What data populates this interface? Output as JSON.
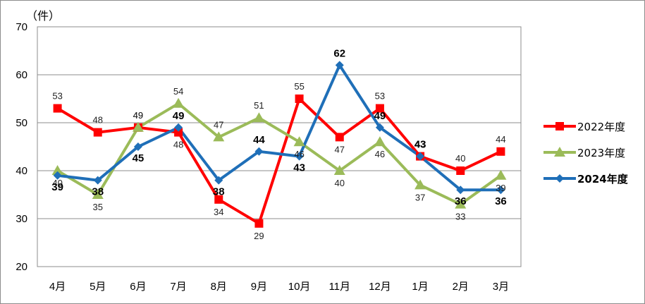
{
  "chart_data": {
    "type": "line",
    "unit_label": "（件）",
    "categories": [
      "4月",
      "5月",
      "6月",
      "7月",
      "8月",
      "9月",
      "10月",
      "11月",
      "12月",
      "1月",
      "2月",
      "3月"
    ],
    "ylim": [
      20,
      70
    ],
    "yticks": [
      20,
      30,
      40,
      50,
      60,
      70
    ],
    "grid": true,
    "legend_position": "right",
    "series": [
      {
        "name": "2022年度",
        "color": "#ff0000",
        "marker": "square",
        "values": [
          53,
          48,
          49,
          48,
          34,
          29,
          55,
          47,
          53,
          43,
          40,
          44
        ]
      },
      {
        "name": "2023年度",
        "color": "#9bbb59",
        "marker": "triangle",
        "values": [
          40,
          35,
          49,
          54,
          47,
          51,
          46,
          40,
          46,
          37,
          33,
          39
        ]
      },
      {
        "name": "2024年度",
        "color": "#1f6fb8",
        "marker": "diamond",
        "values": [
          39,
          38,
          45,
          49,
          38,
          44,
          43,
          62,
          49,
          43,
          36,
          36
        ]
      }
    ]
  }
}
